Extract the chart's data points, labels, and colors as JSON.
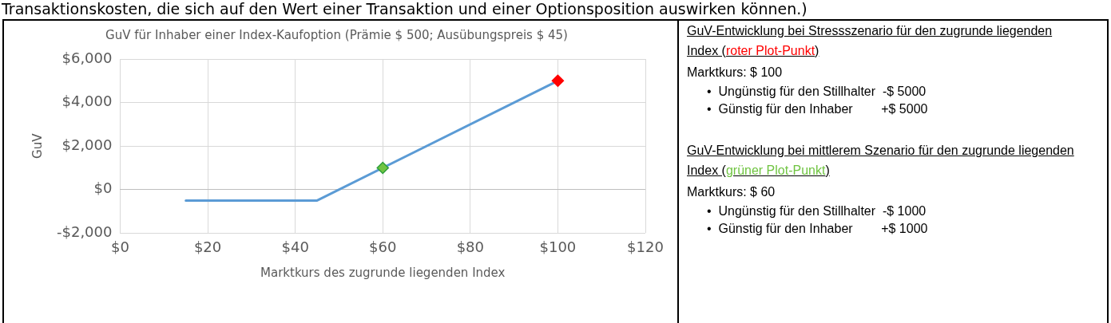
{
  "chart_data": [
    {
      "type": "line",
      "title": "GuV für Inhaber einer Index-Kaufoption (Prämie $ 500; Ausübungspreis $ 45)",
      "xlabel": "Marktkurs des zugrunde liegenden Index",
      "ylabel": "GuV",
      "annotations": [
        "Transaktionskosten, die sich auf den Wert einer Transaktion und einer Optionsposition auswirken können.)"
      ],
      "series": [
        {
          "color": "#5b9bd5",
          "x": [
            15,
            45,
            100
          ],
          "values": [
            -500,
            -500,
            5000
          ],
          "marker": "none"
        },
        {
          "type": "scatter",
          "color": "#70c442",
          "x": [
            60
          ],
          "values": [
            1000
          ],
          "marker": "diamond"
        },
        {
          "type": "scatter",
          "color": "#ff0000",
          "x": [
            100
          ],
          "values": [
            5000
          ],
          "marker": "diamond"
        }
      ],
      "line_style": "solid",
      "grid": true,
      "legend": false,
      "xlim": [
        0,
        120
      ],
      "xticks": [
        {
          "value": 0,
          "label": "$0"
        },
        {
          "value": 20,
          "label": "$20"
        },
        {
          "value": 40,
          "label": "$40"
        },
        {
          "value": 60,
          "label": "$60"
        },
        {
          "value": 80,
          "label": "$80"
        },
        {
          "value": 100,
          "label": "$100"
        },
        {
          "value": 120,
          "label": "$120"
        }
      ],
      "ylim": [
        -2000,
        6000
      ],
      "yticks": [
        {
          "value": -2000,
          "label": "-$2,000"
        },
        {
          "value": 0,
          "label": "$0"
        },
        {
          "value": 2000,
          "label": "$2,000"
        },
        {
          "value": 4000,
          "label": "$4,000"
        },
        {
          "value": 6000,
          "label": "$6,000"
        }
      ]
    },
    {
      "type": "other",
      "annotations": [
        "GuV-Entwicklung bei Stressszenario für den zugrunde liegenden Index (",
        "roter Plot-Punkt",
        ")",
        "Marktkurs: $ 100",
        "•  Ungünstig für den Stillhalter  -$ 5000",
        "•  Günstig für den Inhaber        +$ 5000",
        "GuV-Entwicklung bei mittlerem Szenario für den zugrunde liegenden Index (",
        "grüner Plot-Punkt",
        ")",
        "Marktkurs: $ 60",
        "•  Ungünstig für den Stillhalter  -$ 1000",
        "•  Günstig für den Inhaber        +$ 1000"
      ]
    }
  ]
}
